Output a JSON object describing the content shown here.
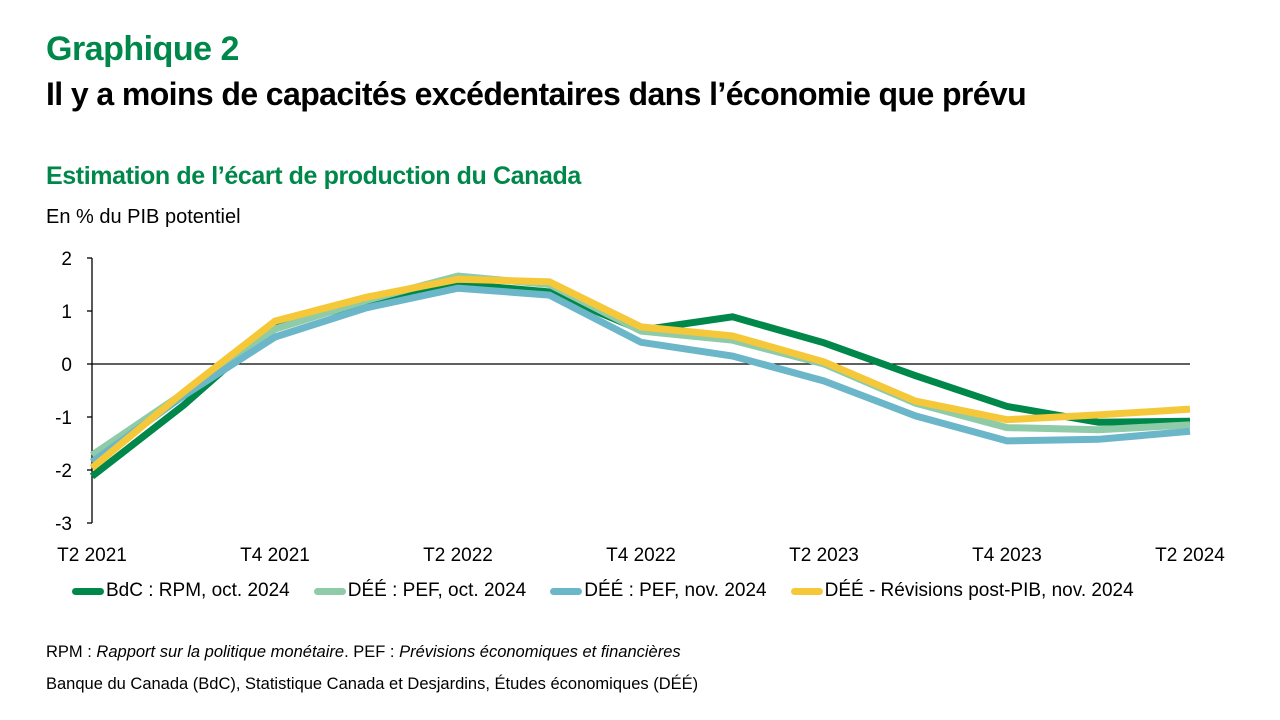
{
  "header": {
    "graph_number": "Graphique 2",
    "title": "Il y a moins de capacités excédentaires dans l’économie que prévu",
    "subtitle": "Estimation de l’écart de production du Canada",
    "unit_label": "En % du PIB potentiel"
  },
  "chart_data": {
    "type": "line",
    "title": "Estimation de l’écart de production du Canada",
    "xlabel": "",
    "ylabel": "En % du PIB potentiel",
    "ylim": [
      -3,
      2
    ],
    "yticks": [
      2,
      1,
      0,
      -1,
      -2,
      -3
    ],
    "x": [
      "T2 2021",
      "T3 2021",
      "T4 2021",
      "T1 2022",
      "T2 2022",
      "T3 2022",
      "T4 2022",
      "T1 2023",
      "T2 2023",
      "T3 2023",
      "T4 2023",
      "T1 2024",
      "T2 2024"
    ],
    "xtick_labels": [
      "T2 2021",
      "T4 2021",
      "T2 2022",
      "T4 2022",
      "T2 2023",
      "T4 2023",
      "T2 2024"
    ],
    "grid": false,
    "zero_line": true,
    "legend_position": "bottom",
    "series": [
      {
        "name": "BdC : RPM, oct. 2024",
        "color": "#00874a",
        "values": [
          -2.12,
          -0.78,
          0.74,
          1.15,
          1.51,
          1.36,
          0.64,
          0.89,
          0.4,
          -0.22,
          -0.8,
          -1.1,
          -1.08
        ]
      },
      {
        "name": "DÉÉ : PEF, oct. 2024",
        "color": "#8fcba8",
        "values": [
          -1.72,
          -0.55,
          0.66,
          1.2,
          1.66,
          1.5,
          0.62,
          0.45,
          0.0,
          -0.74,
          -1.2,
          -1.24,
          -1.15
        ]
      },
      {
        "name": "DÉÉ : PEF, nov. 2024",
        "color": "#6bb6c8",
        "values": [
          -1.85,
          -0.6,
          0.51,
          1.06,
          1.43,
          1.3,
          0.41,
          0.15,
          -0.32,
          -0.98,
          -1.45,
          -1.42,
          -1.27
        ]
      },
      {
        "name": "DÉÉ - Révisions post-PIB, nov. 2024",
        "color": "#f5c83a",
        "values": [
          -1.96,
          -0.53,
          0.81,
          1.26,
          1.6,
          1.55,
          0.7,
          0.53,
          0.04,
          -0.7,
          -1.05,
          -0.96,
          -0.85
        ]
      }
    ]
  },
  "notes": {
    "abbrev_rpm": "RPM : ",
    "abbrev_rpm_full": "Rapport sur la politique monétaire",
    "abbrev_sep": ". PEF : ",
    "abbrev_pef_full": "Prévisions économiques et financières",
    "sources": "Banque du Canada (BdC), Statistique Canada et Desjardins, Études économiques (DÉÉ)"
  }
}
